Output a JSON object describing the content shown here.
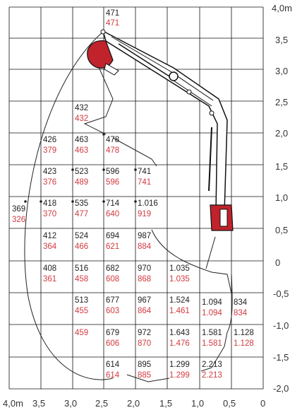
{
  "colors": {
    "grid": "#111111",
    "black_value": "#222222",
    "red_value": "#d23a40",
    "crane": "#c0232b"
  },
  "axes": {
    "y_labels": [
      "4,0m",
      "3,5",
      "3,0",
      "2,5",
      "2,0",
      "1,5",
      "1,0",
      "0,5",
      "0",
      "-0,5",
      "-1,0",
      "-1,5",
      "-2,0"
    ],
    "x_labels": [
      "4,0m",
      "3,5",
      "3,0",
      "2,5",
      "2,0",
      "1,5",
      "1,0",
      "0,5",
      "0"
    ]
  },
  "cells": [
    {
      "black": "471",
      "red": "471"
    },
    {
      "black": "432",
      "red": "432"
    },
    {
      "black": "426",
      "red": "379"
    },
    {
      "black": "463",
      "red": "463"
    },
    {
      "black": "478",
      "red": "478"
    },
    {
      "black": "423",
      "red": "376"
    },
    {
      "black": "523",
      "red": "489"
    },
    {
      "black": "596",
      "red": "596"
    },
    {
      "black": "741",
      "red": "741"
    },
    {
      "black": "369",
      "red": "326"
    },
    {
      "black": "418",
      "red": "370"
    },
    {
      "black": "535",
      "red": "477"
    },
    {
      "black": "714",
      "red": "640"
    },
    {
      "black": "1.016",
      "red": "919"
    },
    {
      "black": "412",
      "red": "364"
    },
    {
      "black": "524",
      "red": "466"
    },
    {
      "black": "694",
      "red": "621"
    },
    {
      "black": "987",
      "red": "884"
    },
    {
      "black": "408",
      "red": "361"
    },
    {
      "black": "516",
      "red": "458"
    },
    {
      "black": "682",
      "red": "608"
    },
    {
      "black": "970",
      "red": "868"
    },
    {
      "black": "1.035",
      "red": "1.035"
    },
    {
      "black": "513",
      "red": "455"
    },
    {
      "black": "677",
      "red": "603"
    },
    {
      "black": "967",
      "red": "864"
    },
    {
      "black": "1.524",
      "red": "1.461"
    },
    {
      "black": "1.094",
      "red": "1.094"
    },
    {
      "black": "834",
      "red": "834"
    },
    {
      "black": "",
      "red": "459"
    },
    {
      "black": "679",
      "red": "606"
    },
    {
      "black": "972",
      "red": "870"
    },
    {
      "black": "1.643",
      "red": "1.476"
    },
    {
      "black": "1.581",
      "red": "1.581"
    },
    {
      "black": "1.128",
      "red": "1.128"
    },
    {
      "black": "614",
      "red": "614"
    },
    {
      "black": "895",
      "red": "885"
    },
    {
      "black": "1.299",
      "red": "1.299"
    },
    {
      "black": "2.213",
      "red": "2.213"
    }
  ]
}
